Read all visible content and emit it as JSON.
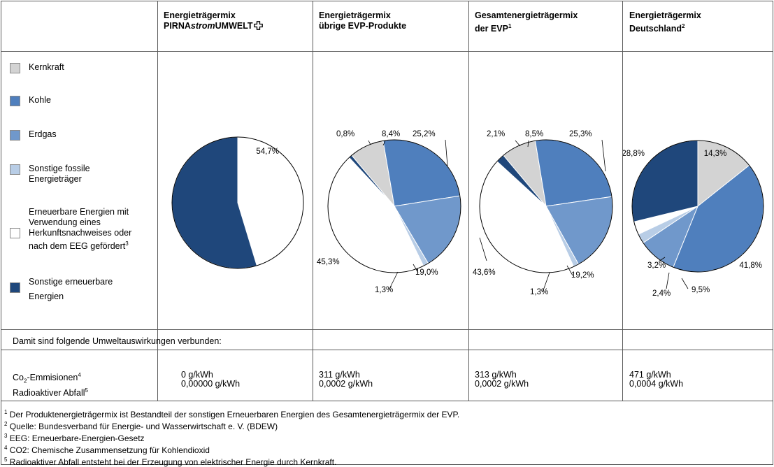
{
  "colors": {
    "Kernkraft": "#d3d3d3",
    "Kohle": "#4f7fbd",
    "Erdgas": "#7098cb",
    "Sonstige fossile Energieträger": "#b8cde6",
    "Erneuerbare Energien EEG": "#ffffff",
    "Sonstige erneuerbare Energien": "#1f477b"
  },
  "headers": [
    {
      "line1": "Energieträgermix",
      "line2_a": "PIRNA",
      "line2_b": "strom",
      "line2_c": "UMWELT",
      "sup": ""
    },
    {
      "line1": "Energieträgermix",
      "line2_a": "übrige EVP-Produkte",
      "line2_b": "",
      "line2_c": "",
      "sup": ""
    },
    {
      "line1": "Gesamtenergieträgermix",
      "line2_a": "der EVP",
      "line2_b": "",
      "line2_c": "",
      "sup": "1"
    },
    {
      "line1": "Energieträgermix",
      "line2_a": "Deutschland",
      "line2_b": "",
      "line2_c": "",
      "sup": "2"
    }
  ],
  "legend": [
    {
      "label": "Kernkraft",
      "sup": "",
      "color_key": "Kernkraft"
    },
    {
      "label": "Kohle",
      "sup": "",
      "color_key": "Kohle"
    },
    {
      "label": "Erdgas",
      "sup": "",
      "color_key": "Erdgas"
    },
    {
      "label": "Sonstige fossile\nEnergieträger",
      "sup": "",
      "color_key": "Sonstige fossile Energieträger"
    },
    {
      "label": "Erneuerbare Energien mit\nVerwendung eines\nHerkunftsnachweises oder\nnach dem EEG gefördert",
      "sup": "3",
      "color_key": "Erneuerbare Energien EEG"
    },
    {
      "label": "Sonstige erneuerbare\nEnergien",
      "sup": "",
      "color_key": "Sonstige erneuerbare Energien"
    }
  ],
  "chart_data": [
    {
      "type": "pie",
      "title": "Energieträgermix PIRNAstromUMWELT",
      "categories": [
        "Erneuerbare Energien EEG",
        "Sonstige erneuerbare Energien"
      ],
      "values": [
        45.3,
        54.7
      ],
      "labels": [
        "45,3%",
        "54,7%"
      ]
    },
    {
      "type": "pie",
      "title": "Energieträgermix übrige EVP-Produkte",
      "categories": [
        "Kernkraft",
        "Kohle",
        "Erdgas",
        "Sonstige fossile Energieträger",
        "Erneuerbare Energien EEG",
        "Sonstige erneuerbare Energien"
      ],
      "values": [
        8.4,
        25.2,
        19.0,
        1.3,
        45.3,
        0.8
      ],
      "labels": [
        "8,4%",
        "25,2%",
        "19,0%",
        "1,3%",
        "45,3%",
        "0,8%"
      ]
    },
    {
      "type": "pie",
      "title": "Gesamtenergieträgermix der EVP",
      "categories": [
        "Kernkraft",
        "Kohle",
        "Erdgas",
        "Sonstige fossile Energieträger",
        "Erneuerbare Energien EEG",
        "Sonstige erneuerbare Energien"
      ],
      "values": [
        8.5,
        25.3,
        19.2,
        1.3,
        43.6,
        2.1
      ],
      "labels": [
        "8,5%",
        "25,3%",
        "19,2%",
        "1,3%",
        "43,6%",
        "2,1%"
      ]
    },
    {
      "type": "pie",
      "title": "Energieträgermix Deutschland",
      "categories": [
        "Kernkraft",
        "Kohle",
        "Erdgas",
        "Sonstige fossile Energieträger",
        "Erneuerbare Energien EEG",
        "Sonstige erneuerbare Energien"
      ],
      "values": [
        14.3,
        41.8,
        9.5,
        2.4,
        3.2,
        28.8
      ],
      "labels": [
        "14,3%",
        "41,8%",
        "9,5%",
        "2,4%",
        "3,2%",
        "28,8%"
      ]
    }
  ],
  "impact_intro": "Damit sind folgende Umweltauswirkungen verbunden:",
  "impact_labels": {
    "co2_a": "Co",
    "co2_sub": "2",
    "co2_b": "-Emmisionen",
    "co2_sup": "4",
    "waste": "Radioaktiver Abfall",
    "waste_sup": "5"
  },
  "impacts": [
    {
      "co2": "0 g/kWh",
      "waste": "0,00000 g/kWh"
    },
    {
      "co2": "311 g/kWh",
      "waste": "0,0002 g/kWh"
    },
    {
      "co2": "313 g/kWh",
      "waste": "0,0002 g/kWh"
    },
    {
      "co2": "471 g/kWh",
      "waste": "0,0004 g/kWh"
    }
  ],
  "footnotes": [
    {
      "num": "1",
      "text": " Der Produktenergieträgermix ist Bestandteil der sonstigen Erneuerbaren Energien des Gesamtenergieträgermix der EVP."
    },
    {
      "num": "2",
      "text": " Quelle: Bundesverband für Energie- und Wasserwirtschaft e. V. (BDEW)"
    },
    {
      "num": "3",
      "text": " EEG: Erneuerbare-Energien-Gesetz"
    },
    {
      "num": "4",
      "text": " CO2: Chemische Zusammensetzung für Kohlendioxid"
    },
    {
      "num": "5",
      "text": " Radioaktiver Abfall entsteht bei der Erzeugung von elektrischer Energie durch Kernkraft."
    }
  ]
}
